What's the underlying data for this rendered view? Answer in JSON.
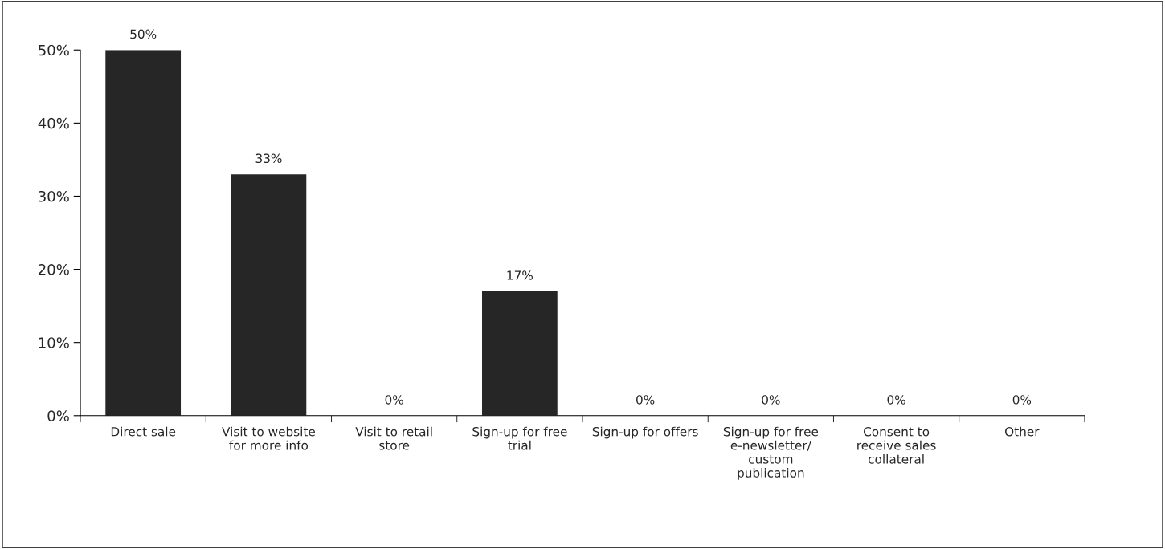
{
  "chart_data": {
    "type": "bar",
    "categories": [
      "Direct sale",
      "Visit to website\nfor more info",
      "Visit to retail\nstore",
      "Sign-up for free\ntrial",
      "Sign-up for offers",
      "Sign-up for free\ne-newsletter/\ncustom\npublication",
      "Consent to\nreceive sales\ncollateral",
      "Other"
    ],
    "values": [
      50,
      33,
      0,
      17,
      0,
      0,
      0,
      0
    ],
    "value_labels": [
      "50%",
      "33%",
      "0%",
      "17%",
      "0%",
      "0%",
      "0%",
      "0%"
    ],
    "color": "#262626",
    "ylim": [
      0,
      50
    ],
    "yticks": [
      {
        "value": 0,
        "label": "0%"
      },
      {
        "value": 10,
        "label": "10%"
      },
      {
        "value": 20,
        "label": "20%"
      },
      {
        "value": 30,
        "label": "30%"
      },
      {
        "value": 40,
        "label": "40%"
      },
      {
        "value": 50,
        "label": "50%"
      }
    ],
    "grid": false,
    "legend": false
  }
}
